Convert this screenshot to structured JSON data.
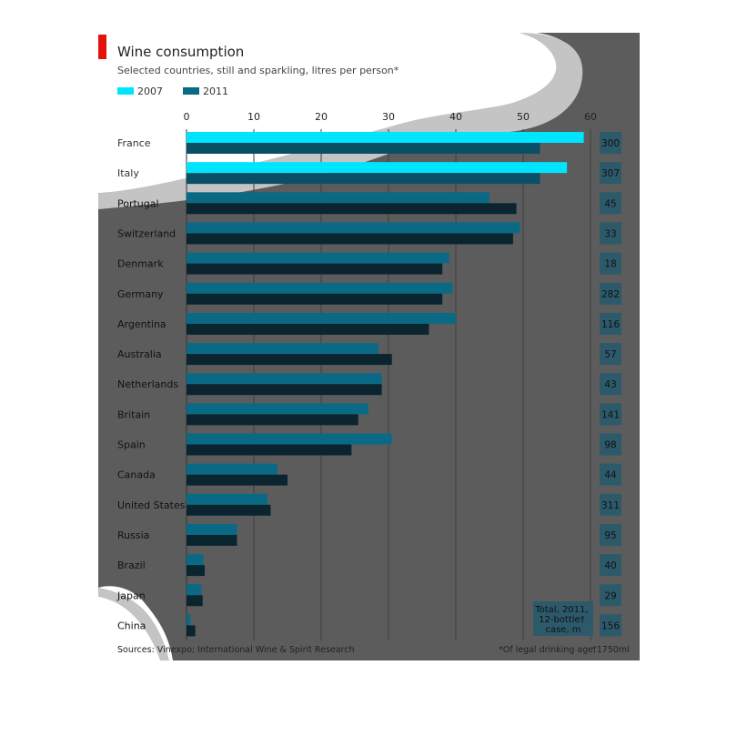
{
  "chart_data": {
    "type": "bar",
    "title": "Wine consumption",
    "subtitle": "Selected countries, still and sparkling, litres per person*",
    "legend": {
      "placement": "top-left",
      "entries": [
        "2007",
        "2011"
      ]
    },
    "xaxis": {
      "ticks": [
        "0",
        "10",
        "20",
        "30",
        "40",
        "50",
        "60"
      ],
      "xlim": [
        0,
        60
      ],
      "grid": true
    },
    "categories": [
      "France",
      "Italy",
      "Portugal",
      "Switzerland",
      "Denmark",
      "Germany",
      "Argentina",
      "Australia",
      "Netherlands",
      "Britain",
      "Spain",
      "Canada",
      "United States",
      "Russia",
      "Brazil",
      "Japan",
      "China"
    ],
    "series": [
      {
        "name": "2007",
        "values": [
          59,
          56.5,
          45,
          49.5,
          39,
          39.5,
          40,
          28.5,
          29,
          27,
          30.5,
          13.5,
          12,
          7.5,
          2.5,
          2.2,
          0.6
        ]
      },
      {
        "name": "2011",
        "values": [
          52.5,
          52.5,
          49,
          48.5,
          38,
          38,
          36,
          30.5,
          29,
          25.5,
          24.5,
          15,
          12.5,
          7.5,
          2.7,
          2.4,
          1.3
        ]
      }
    ],
    "side_column": {
      "label": "Total, 2011, 12-bottle† case, m",
      "values": [
        "300",
        "307",
        "45",
        "33",
        "18",
        "282",
        "116",
        "57",
        "43",
        "141",
        "98",
        "44",
        "311",
        "95",
        "40",
        "29",
        "156"
      ]
    },
    "colors": {
      "2007": "#00e5ff",
      "2011": "#0a6a86",
      "accent": "#e3120b",
      "panel": "#5c5c5c"
    }
  },
  "footer": {
    "sources": "Sources: Vinexpo; International Wine & Spirit Research",
    "note": "*Of legal drinking age",
    "bottle": "†1750ml"
  }
}
